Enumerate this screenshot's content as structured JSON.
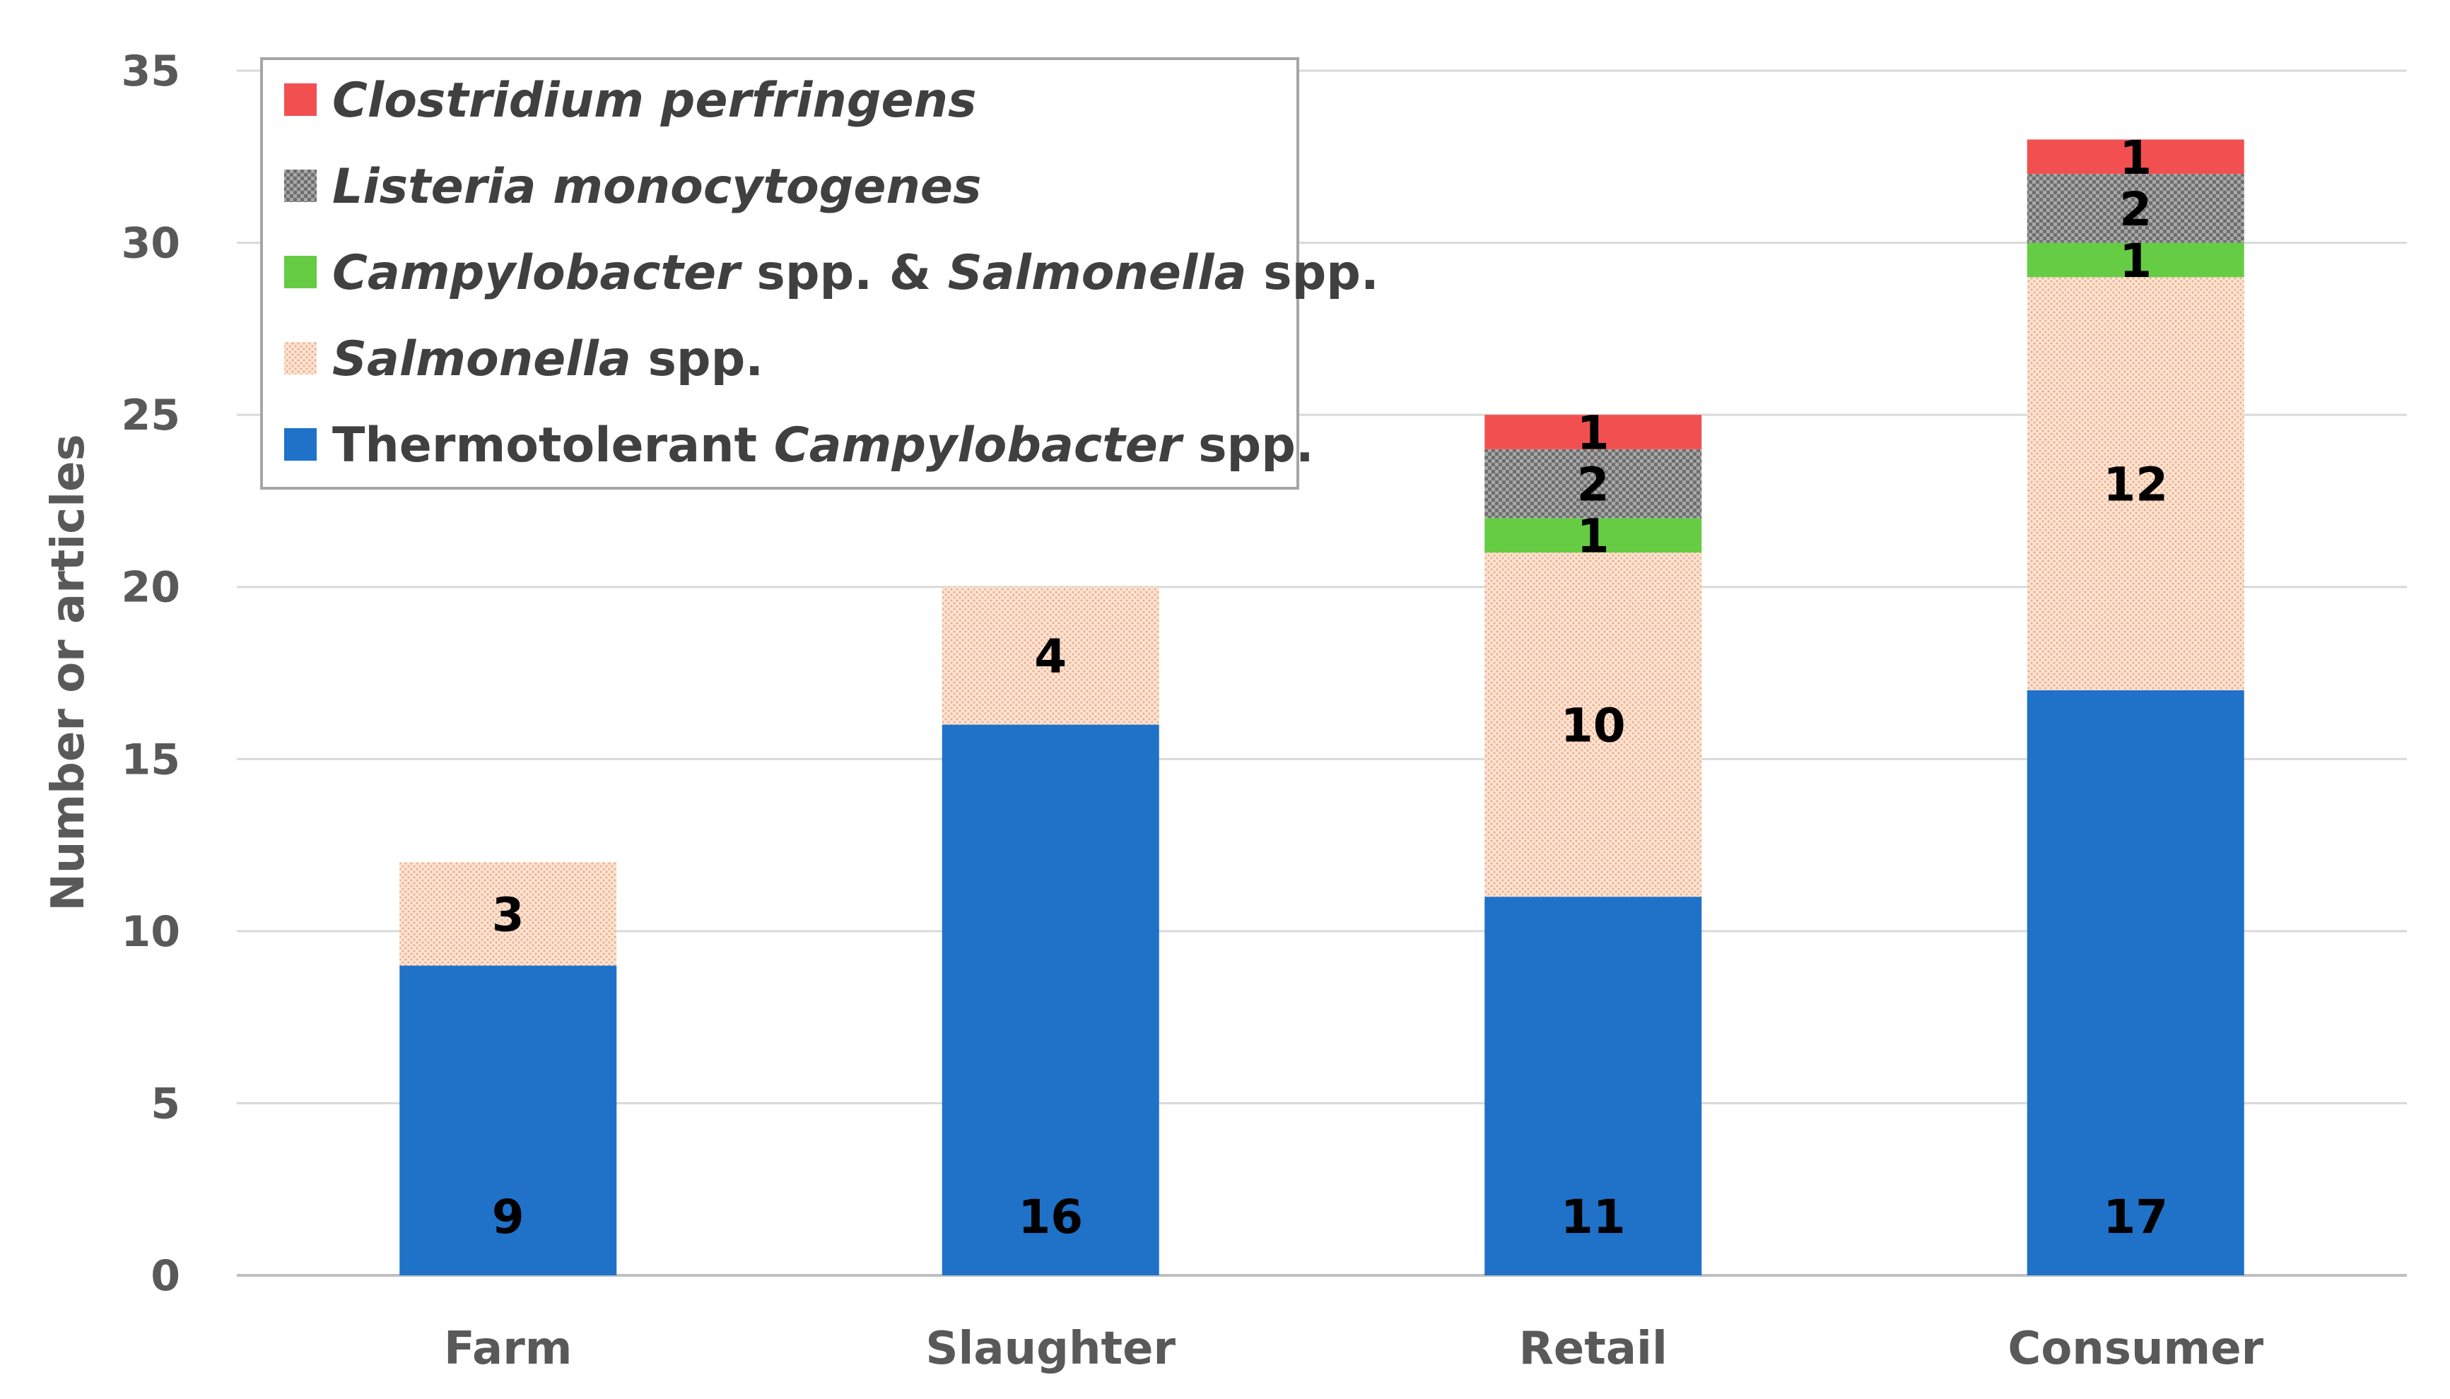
{
  "chart_data": {
    "type": "bar",
    "stacked": true,
    "categories": [
      "Farm",
      "Slaughter",
      "Retail",
      "Consumer"
    ],
    "ylabel": "Number or articles",
    "ylim": [
      0,
      35
    ],
    "yticks": [
      0,
      5,
      10,
      15,
      20,
      25,
      30,
      35
    ],
    "grid": true,
    "legend_position": "top-left",
    "series": [
      {
        "name": "Thermotolerant Campylobacter spp.",
        "color": "#1f72c8",
        "pattern": "solid",
        "values": [
          9,
          16,
          11,
          17
        ]
      },
      {
        "name": "Salmonella spp.",
        "color": "#f8d2b8",
        "pattern": "dots",
        "values": [
          3,
          4,
          10,
          12
        ]
      },
      {
        "name": "Campylobacter spp. & Salmonella spp.",
        "color": "#66cc44",
        "pattern": "solid",
        "values": [
          0,
          0,
          1,
          1
        ]
      },
      {
        "name": "Listeria monocytogenes",
        "color": "#7f7f7f",
        "pattern": "checker",
        "values": [
          0,
          0,
          2,
          2
        ]
      },
      {
        "name": "Clostridium perfringens",
        "color": "#f25050",
        "pattern": "solid",
        "values": [
          0,
          0,
          1,
          1
        ]
      }
    ],
    "legend": [
      {
        "series": 4,
        "parts": [
          {
            "text": "Clostridium perfringens",
            "italic": true
          }
        ]
      },
      {
        "series": 3,
        "parts": [
          {
            "text": "Listeria monocytogenes",
            "italic": true
          }
        ]
      },
      {
        "series": 2,
        "parts": [
          {
            "text": "Campylobacter",
            "italic": true
          },
          {
            "text": " spp. & ",
            "italic": false
          },
          {
            "text": "Salmonella",
            "italic": true
          },
          {
            "text": " spp.",
            "italic": false
          }
        ]
      },
      {
        "series": 1,
        "parts": [
          {
            "text": "Salmonella",
            "italic": true
          },
          {
            "text": " spp.",
            "italic": false
          }
        ]
      },
      {
        "series": 0,
        "parts": [
          {
            "text": "Thermotolerant ",
            "italic": false
          },
          {
            "text": "Campylobacter",
            "italic": true
          },
          {
            "text": " spp.",
            "italic": false
          }
        ]
      }
    ]
  }
}
